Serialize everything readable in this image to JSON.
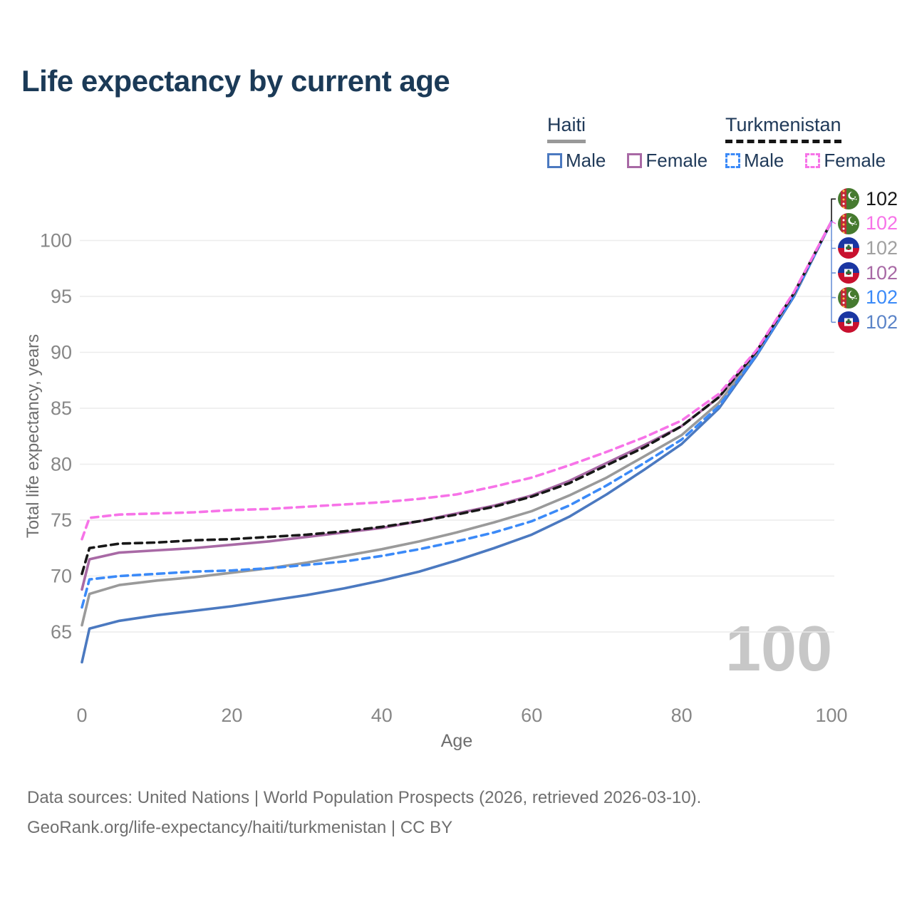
{
  "title": "Life expectancy by current age",
  "legend": {
    "groups": [
      {
        "name": "Haiti",
        "underline": "solid",
        "underline_color": "#999999",
        "items": [
          {
            "label": "Male",
            "color": "#4b79c0",
            "dash": false
          },
          {
            "label": "Female",
            "color": "#a869a5",
            "dash": false
          }
        ]
      },
      {
        "name": "Turkmenistan",
        "underline": "dashed",
        "underline_color": "#151515",
        "items": [
          {
            "label": "Male",
            "color": "#3b8af8",
            "dash": true
          },
          {
            "label": "Female",
            "color": "#f773e8",
            "dash": true
          }
        ]
      }
    ]
  },
  "y_axis": {
    "title": "Total life expectancy, years",
    "ticks": [
      65,
      70,
      75,
      80,
      85,
      90,
      95,
      100
    ]
  },
  "x_axis": {
    "title": "Age",
    "ticks": [
      0,
      20,
      40,
      60,
      80,
      100
    ]
  },
  "watermark": "100",
  "end_labels": [
    {
      "country": "turkmenistan",
      "series": "Turkmenistan",
      "value": "102",
      "color": "#181818"
    },
    {
      "country": "turkmenistan",
      "series": "Turkmenistan Female",
      "value": "102",
      "color": "#f773e8"
    },
    {
      "country": "haiti",
      "series": "Haiti",
      "value": "102",
      "color": "#a0a0a0"
    },
    {
      "country": "haiti",
      "series": "Haiti Female",
      "value": "102",
      "color": "#a869a5"
    },
    {
      "country": "turkmenistan",
      "series": "Turkmenistan Male",
      "value": "102",
      "color": "#3b8af8"
    },
    {
      "country": "haiti",
      "series": "Haiti Male",
      "value": "102",
      "color": "#5b84c8"
    }
  ],
  "footer": {
    "line1": "Data sources: United Nations | World Population Prospects (2026, retrieved 2026-03-10).",
    "line2": "GeoRank.org/life-expectancy/haiti/turkmenistan | CC BY"
  },
  "chart_data": {
    "type": "line",
    "title": "Life expectancy by current age",
    "xlabel": "Age",
    "ylabel": "Total life expectancy, years",
    "xlim": [
      0,
      100
    ],
    "ylim": [
      62,
      103
    ],
    "grid": true,
    "legend_position": "top-right",
    "x": [
      0,
      1,
      5,
      10,
      15,
      20,
      25,
      30,
      35,
      40,
      45,
      50,
      55,
      60,
      65,
      70,
      75,
      80,
      85,
      90,
      95,
      100
    ],
    "series": [
      {
        "name": "Haiti Male",
        "color": "#4b79c0",
        "dash": false,
        "values": [
          62.3,
          65.3,
          66.0,
          66.5,
          66.9,
          67.3,
          67.8,
          68.3,
          68.9,
          69.6,
          70.4,
          71.4,
          72.5,
          73.7,
          75.3,
          77.3,
          79.5,
          81.8,
          85.0,
          89.7,
          95.0,
          101.7
        ]
      },
      {
        "name": "Haiti",
        "color": "#9a9a9a",
        "dash": false,
        "values": [
          65.6,
          68.4,
          69.2,
          69.6,
          69.9,
          70.3,
          70.7,
          71.2,
          71.8,
          72.4,
          73.1,
          73.9,
          74.8,
          75.8,
          77.2,
          78.8,
          80.7,
          82.6,
          85.5,
          89.9,
          95.2,
          101.7
        ]
      },
      {
        "name": "Haiti Female",
        "color": "#a869a5",
        "dash": false,
        "values": [
          68.8,
          71.5,
          72.1,
          72.3,
          72.5,
          72.8,
          73.1,
          73.5,
          73.9,
          74.3,
          74.9,
          75.6,
          76.3,
          77.2,
          78.5,
          80.1,
          81.7,
          83.4,
          86.0,
          90.1,
          95.3,
          101.7
        ]
      },
      {
        "name": "Turkmenistan Male",
        "color": "#3b8af8",
        "dash": true,
        "values": [
          67.2,
          69.7,
          70.0,
          70.2,
          70.4,
          70.5,
          70.7,
          71.0,
          71.3,
          71.8,
          72.4,
          73.1,
          73.9,
          74.9,
          76.3,
          78.1,
          80.1,
          82.2,
          85.2,
          89.8,
          95.1,
          101.7
        ]
      },
      {
        "name": "Turkmenistan",
        "color": "#181818",
        "dash": true,
        "values": [
          70.2,
          72.5,
          72.9,
          73.0,
          73.2,
          73.3,
          73.5,
          73.7,
          74.0,
          74.4,
          74.9,
          75.5,
          76.2,
          77.1,
          78.3,
          79.9,
          81.5,
          83.4,
          86.0,
          90.1,
          95.3,
          101.7
        ]
      },
      {
        "name": "Turkmenistan Female",
        "color": "#f773e8",
        "dash": true,
        "values": [
          73.3,
          75.2,
          75.5,
          75.6,
          75.7,
          75.9,
          76.0,
          76.2,
          76.4,
          76.6,
          76.9,
          77.3,
          78.0,
          78.8,
          79.9,
          81.1,
          82.4,
          83.9,
          86.3,
          90.2,
          95.4,
          101.7
        ]
      }
    ]
  }
}
